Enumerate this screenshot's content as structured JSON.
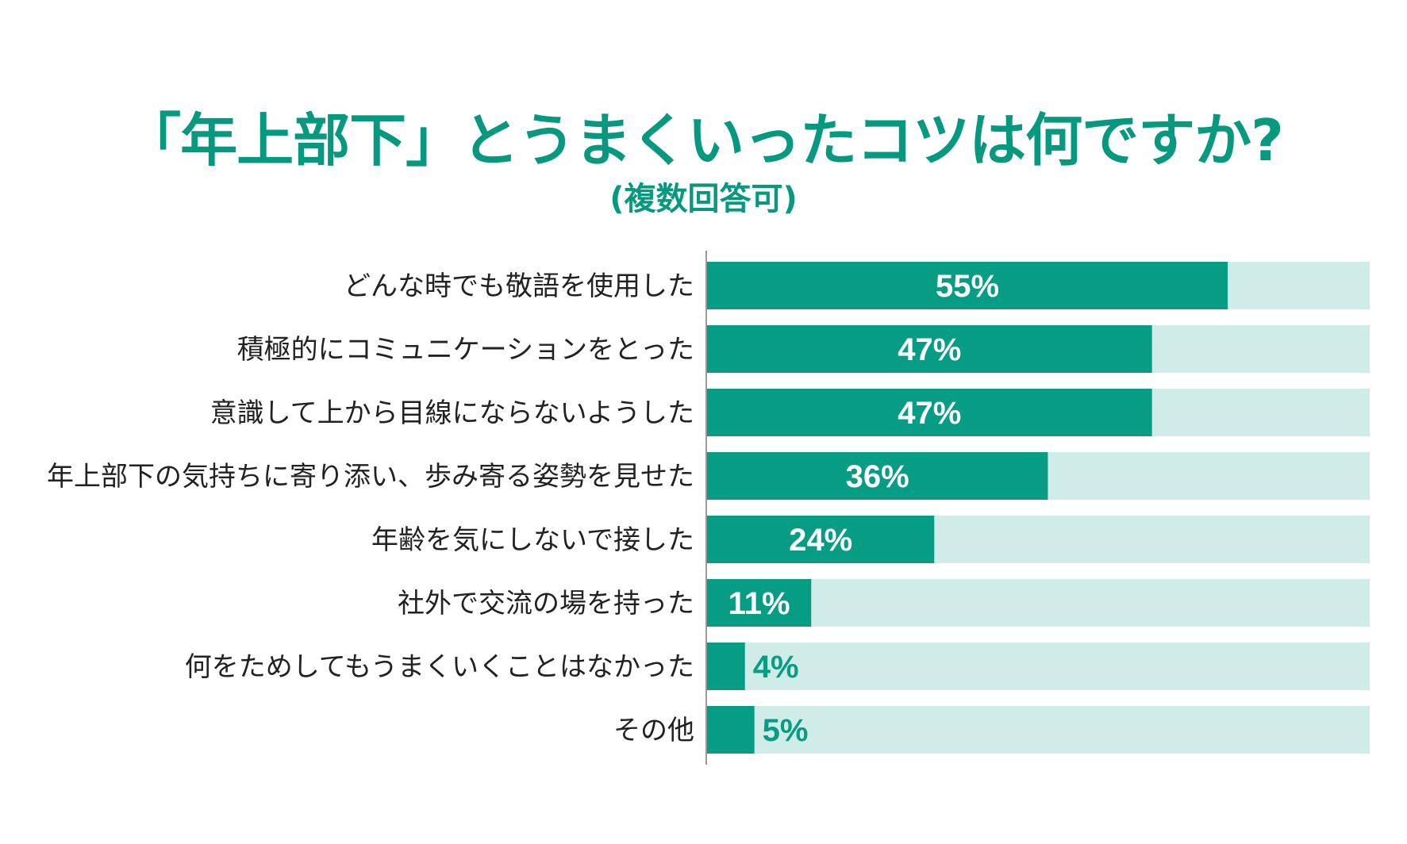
{
  "chart_data": {
    "type": "bar",
    "orientation": "horizontal",
    "title": "「年上部下」とうまくいったコツは何ですか?",
    "subtitle": "(複数回答可)",
    "categories": [
      "どんな時でも敬語を使用した",
      "積極的にコミュニケーションをとった",
      "意識して上から目線にならないようした",
      "年上部下の気持ちに寄り添い、歩み寄る姿勢を見せた",
      "年齢を気にしないで接した",
      "社外で交流の場を持った",
      "何をためしてもうまくいくことはなかった",
      "その他"
    ],
    "values": [
      55,
      47,
      47,
      36,
      24,
      11,
      4,
      5
    ],
    "value_labels": [
      "55%",
      "47%",
      "47%",
      "36%",
      "24%",
      "11%",
      "4%",
      "5%"
    ],
    "xlim": [
      0,
      70
    ],
    "unit": "%",
    "grid": false,
    "legend": "none",
    "colors": {
      "bar": "#079c84",
      "track": "#d0ece6",
      "title": "#07997f",
      "label_inside": "#ffffff",
      "label_outside": "#079c84",
      "axis": "#999999"
    }
  }
}
